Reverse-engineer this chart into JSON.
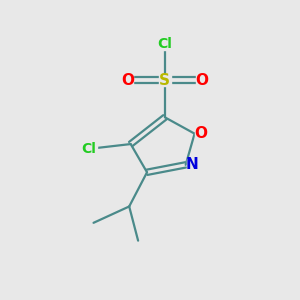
{
  "bg_color": "#e8e8e8",
  "bond_color": "#4a8a8a",
  "S_color": "#b8b800",
  "O_color": "#ff0000",
  "N_color": "#0000dd",
  "Cl_color": "#22cc22",
  "S_label": "S",
  "O_label": "O",
  "N_label": "N",
  "Cl_top_label": "Cl",
  "Cl_ring_label": "Cl",
  "O_left_label": "O",
  "O_right_label": "O",
  "font_size_S": 11,
  "font_size_O": 11,
  "font_size_N": 11,
  "font_size_Cl": 10,
  "figsize": [
    3.0,
    3.0
  ],
  "dpi": 100
}
